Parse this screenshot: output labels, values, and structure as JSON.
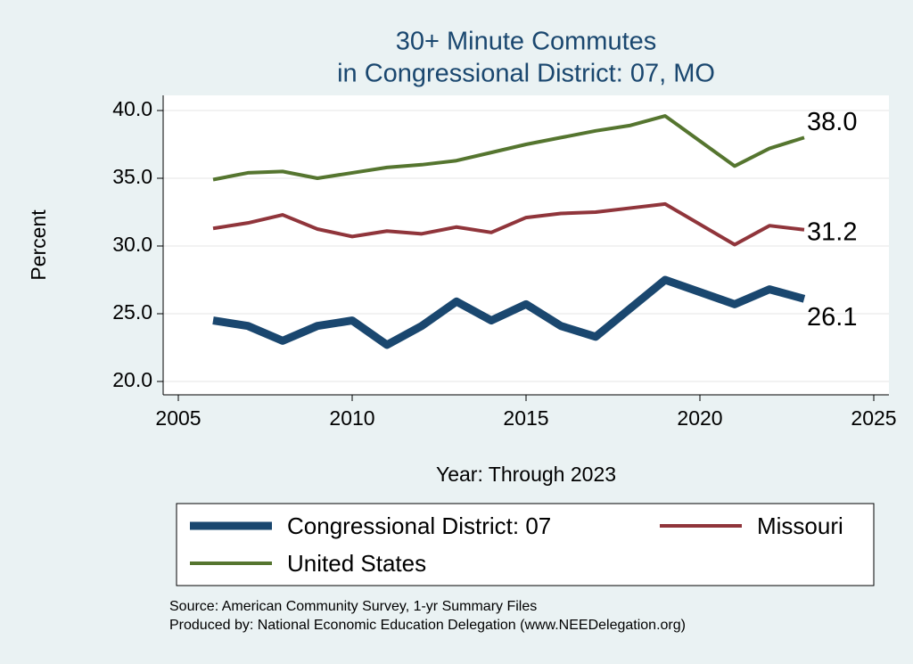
{
  "chart_data": {
    "type": "line",
    "title": [
      "30+ Minute Commutes",
      "in Congressional District:  07, MO"
    ],
    "xlabel": "Year: Through 2023",
    "ylabel": "Percent",
    "x": [
      2006,
      2007,
      2008,
      2009,
      2010,
      2011,
      2012,
      2013,
      2014,
      2015,
      2016,
      2017,
      2018,
      2019,
      2021,
      2022,
      2023
    ],
    "series": [
      {
        "name": "Congressional District:  07",
        "color": "#1a476f",
        "width": 9,
        "values": [
          24.5,
          24.1,
          23.0,
          24.1,
          24.5,
          22.7,
          24.1,
          25.9,
          24.5,
          25.7,
          24.1,
          23.3,
          25.4,
          27.5,
          25.7,
          26.8,
          26.1
        ],
        "value_labels": [
          null,
          null,
          null,
          null,
          null,
          null,
          null,
          null,
          null,
          null,
          null,
          null,
          null,
          null,
          null,
          null,
          "26.1"
        ]
      },
      {
        "name": "Missouri",
        "color": "#90353b",
        "width": 4,
        "values": [
          31.3,
          31.7,
          32.3,
          31.25,
          30.7,
          31.1,
          30.9,
          31.4,
          31.0,
          32.1,
          32.4,
          32.5,
          32.8,
          33.1,
          30.1,
          31.5,
          31.2
        ],
        "value_labels": [
          null,
          null,
          null,
          null,
          null,
          null,
          null,
          null,
          null,
          null,
          null,
          null,
          null,
          null,
          null,
          null,
          "31.2"
        ]
      },
      {
        "name": "United States",
        "color": "#55752f",
        "width": 4,
        "values": [
          34.9,
          35.4,
          35.5,
          35.0,
          35.4,
          35.8,
          36.0,
          36.3,
          36.9,
          37.5,
          38.0,
          38.5,
          38.9,
          39.6,
          35.9,
          37.2,
          38.0
        ],
        "value_labels": [
          null,
          null,
          null,
          null,
          null,
          null,
          null,
          null,
          null,
          null,
          null,
          null,
          null,
          null,
          null,
          null,
          "38.0"
        ]
      }
    ],
    "xlim": [
      2005,
      2025
    ],
    "xticks": [
      2005,
      2010,
      2015,
      2020,
      2025
    ],
    "ylim": [
      20,
      40
    ],
    "yticks": [
      {
        "value": 20,
        "label": "20.0"
      },
      {
        "value": 25,
        "label": "25.0"
      },
      {
        "value": 30,
        "label": "30.0"
      },
      {
        "value": 35,
        "label": "35.0"
      },
      {
        "value": 40,
        "label": "40.0"
      }
    ],
    "grid": true,
    "notes": [
      "Source: American Community Survey, 1-yr Summary Files",
      "Produced by: National Economic Education Delegation (www.NEEDelegation.org)"
    ]
  }
}
